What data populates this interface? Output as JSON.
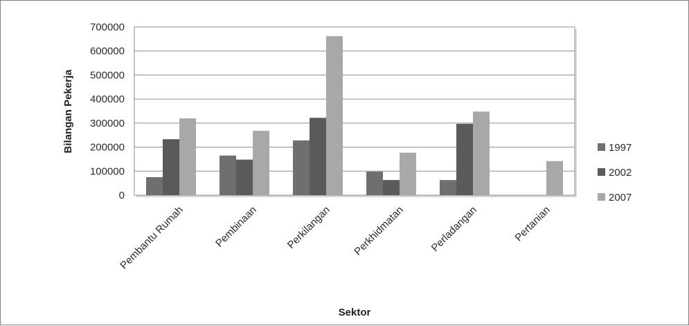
{
  "chart_data": {
    "type": "bar",
    "categories": [
      "Pembantu Rumah",
      "Pembinaan",
      "Perkilangan",
      "Perkhidmatan",
      "Perladangan",
      "Pertanian"
    ],
    "series": [
      {
        "name": "1997",
        "values": [
          75000,
          165000,
          228000,
          98000,
          63000,
          0
        ],
        "color": "#6f6f6f"
      },
      {
        "name": "2002",
        "values": [
          233000,
          148000,
          322000,
          63000,
          297000,
          0
        ],
        "color": "#5a5a5a"
      },
      {
        "name": "2007",
        "values": [
          320000,
          268000,
          662000,
          177000,
          348000,
          142000
        ],
        "color": "#a8a8a8"
      }
    ],
    "xlabel": "Sektor",
    "ylabel": "Bilangan Pekerja",
    "ylim": [
      0,
      700000
    ],
    "yticks": [
      0,
      100000,
      200000,
      300000,
      400000,
      500000,
      600000,
      700000
    ],
    "grid": true,
    "legend_position": "right"
  }
}
